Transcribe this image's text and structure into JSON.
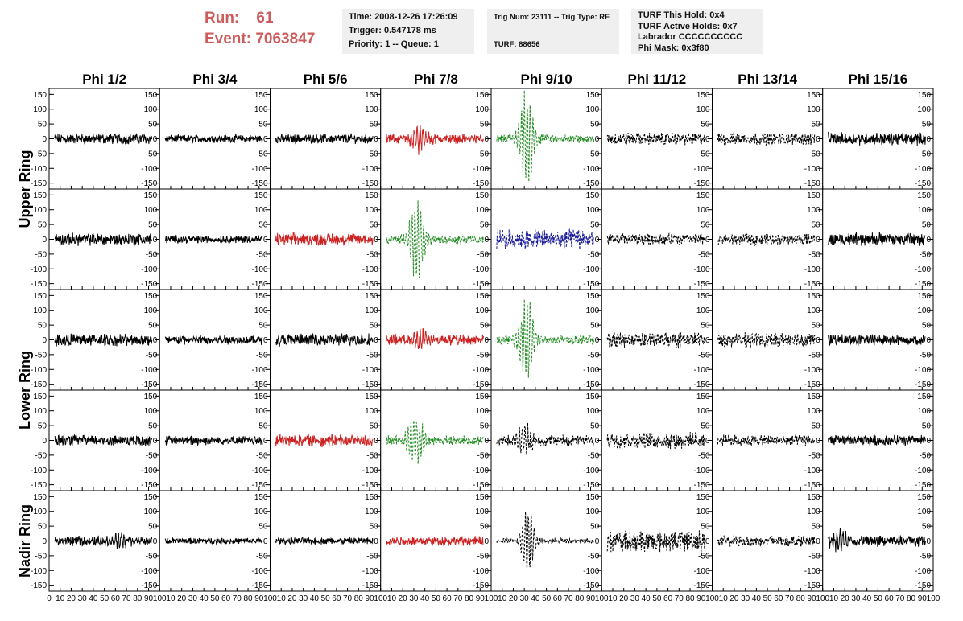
{
  "header": {
    "run_label": "Run:",
    "run_value": "61",
    "event_label": "Event:",
    "event_value": "7063847",
    "box_time": [
      "Time: 2008-12-26 17:26:09",
      "Trigger: 0.547178 ms",
      "Priority: 1 -- Queue: 1"
    ],
    "box_trig": [
      "Trig Num: 23111 -- Trig Type: RF",
      "",
      "TURF: 88656"
    ],
    "box_turf": [
      "TURF This Hold: 0x4",
      "TURF Active Holds: 0x7",
      "Labrador CCCCCCCCCC",
      "Phi Mask: 0x3f80"
    ]
  },
  "chart_data": {
    "type": "line",
    "columns": [
      "Phi 1/2",
      "Phi 3/4",
      "Phi 5/6",
      "Phi 7/8",
      "Phi 9/10",
      "Phi 11/12",
      "Phi 13/14",
      "Phi 15/16"
    ],
    "ring_labels": [
      {
        "label": "Upper Ring",
        "rows": [
          0,
          1
        ]
      },
      {
        "label": "Lower Ring",
        "rows": [
          2,
          3
        ]
      },
      {
        "label": "Nadir Ring",
        "rows": [
          4
        ]
      }
    ],
    "ylim": [
      -170,
      170
    ],
    "yticks": [
      -150,
      -100,
      -50,
      0,
      50,
      100,
      150
    ],
    "xlim": [
      0,
      100
    ],
    "xticks": [
      0,
      10,
      20,
      30,
      40,
      50,
      60,
      70,
      80,
      90,
      100
    ],
    "colors": {
      "black": "#000000",
      "red": "#cc2222",
      "green": "#228b22",
      "blue": "#1a1a99"
    },
    "panels": [
      [
        {
          "color": "black",
          "style": "solid",
          "noise": 14,
          "pulse": null
        },
        {
          "color": "black",
          "style": "solid",
          "noise": 10,
          "pulse": null
        },
        {
          "color": "black",
          "style": "solid",
          "noise": 12,
          "pulse": null
        },
        {
          "color": "red",
          "style": "solid",
          "noise": 12,
          "pulse": {
            "t": 35,
            "amp": 45,
            "width": 6
          }
        },
        {
          "color": "green",
          "style": "dashed",
          "noise": 12,
          "pulse": {
            "t": 32,
            "amp": 170,
            "width": 5
          }
        },
        {
          "color": "black",
          "style": "dashed",
          "noise": 16,
          "pulse": null
        },
        {
          "color": "black",
          "style": "dashed",
          "noise": 16,
          "pulse": null
        },
        {
          "color": "black",
          "style": "solid",
          "noise": 16,
          "pulse": null
        }
      ],
      [
        {
          "color": "black",
          "style": "solid",
          "noise": 16,
          "pulse": null
        },
        {
          "color": "black",
          "style": "solid",
          "noise": 10,
          "pulse": null
        },
        {
          "color": "red",
          "style": "solid",
          "noise": 16,
          "pulse": null
        },
        {
          "color": "green",
          "style": "dashed",
          "noise": 12,
          "pulse": {
            "t": 33,
            "amp": 150,
            "width": 5
          }
        },
        {
          "color": "blue",
          "style": "dashed",
          "noise": 25,
          "pulse": null
        },
        {
          "color": "black",
          "style": "dashed",
          "noise": 15,
          "pulse": null
        },
        {
          "color": "black",
          "style": "dashed",
          "noise": 14,
          "pulse": null
        },
        {
          "color": "black",
          "style": "solid",
          "noise": 18,
          "pulse": null
        }
      ],
      [
        {
          "color": "black",
          "style": "solid",
          "noise": 16,
          "pulse": null
        },
        {
          "color": "black",
          "style": "solid",
          "noise": 12,
          "pulse": null
        },
        {
          "color": "black",
          "style": "solid",
          "noise": 16,
          "pulse": null
        },
        {
          "color": "red",
          "style": "solid",
          "noise": 14,
          "pulse": {
            "t": 35,
            "amp": 35,
            "width": 6
          }
        },
        {
          "color": "green",
          "style": "dashed",
          "noise": 12,
          "pulse": {
            "t": 32,
            "amp": 155,
            "width": 5
          }
        },
        {
          "color": "black",
          "style": "dashed",
          "noise": 20,
          "pulse": null
        },
        {
          "color": "black",
          "style": "dashed",
          "noise": 18,
          "pulse": null
        },
        {
          "color": "black",
          "style": "solid",
          "noise": 14,
          "pulse": null
        }
      ],
      [
        {
          "color": "black",
          "style": "solid",
          "noise": 14,
          "pulse": null
        },
        {
          "color": "black",
          "style": "solid",
          "noise": 12,
          "pulse": null
        },
        {
          "color": "red",
          "style": "solid",
          "noise": 16,
          "pulse": null
        },
        {
          "color": "green",
          "style": "dashed",
          "noise": 12,
          "pulse": {
            "t": 32,
            "amp": 85,
            "width": 6
          }
        },
        {
          "color": "black",
          "style": "dashed",
          "noise": 14,
          "pulse": {
            "t": 30,
            "amp": 55,
            "width": 6
          }
        },
        {
          "color": "black",
          "style": "dashed",
          "noise": 20,
          "pulse": null
        },
        {
          "color": "black",
          "style": "dashed",
          "noise": 14,
          "pulse": null
        },
        {
          "color": "black",
          "style": "solid",
          "noise": 14,
          "pulse": null
        }
      ],
      [
        {
          "color": "black",
          "style": "solid",
          "noise": 12,
          "pulse": {
            "t": 62,
            "amp": 25,
            "width": 8
          }
        },
        {
          "color": "black",
          "style": "solid",
          "noise": 8,
          "pulse": null
        },
        {
          "color": "black",
          "style": "solid",
          "noise": 9,
          "pulse": null
        },
        {
          "color": "red",
          "style": "solid",
          "noise": 12,
          "pulse": null
        },
        {
          "color": "black",
          "style": "dashed",
          "noise": 8,
          "pulse": {
            "t": 33,
            "amp": 140,
            "width": 4
          }
        },
        {
          "color": "black",
          "style": "dashed",
          "noise": 28,
          "pulse": null
        },
        {
          "color": "black",
          "style": "dashed",
          "noise": 14,
          "pulse": null
        },
        {
          "color": "black",
          "style": "solid",
          "noise": 14,
          "pulse": {
            "t": 15,
            "amp": 40,
            "width": 6
          }
        }
      ]
    ]
  }
}
